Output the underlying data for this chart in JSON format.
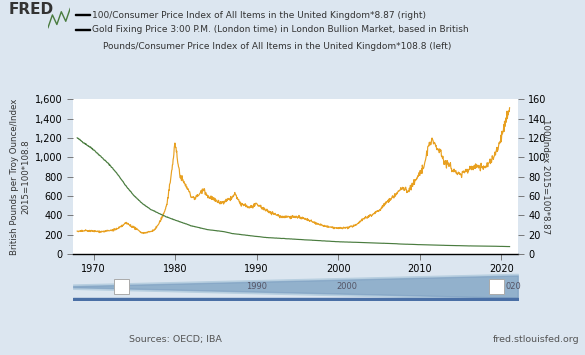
{
  "legend_line1": "100/Consumer Price Index of All Items in the United Kingdom*8.87 (right)",
  "legend_line2_a": "Gold Fixing Price 3:00 P.M. (London time) in London Bullion Market, based in British",
  "legend_line2_b": "Pounds/Consumer Price Index of All Items in the United Kingdom*108.8 (left)",
  "ylabel_left": "British Pounds per Troy Ounce/Index\n2015=100*108.8",
  "ylabel_right": "100/Index 2015=100*8.87",
  "source_left": "Sources: OECD; IBA",
  "source_right": "fred.stlouisfed.org",
  "background_color": "#dce6f0",
  "plot_bg_color": "#ffffff",
  "green_color": "#4a7c3f",
  "orange_color": "#e8a020",
  "ylim_left": [
    0,
    1600
  ],
  "ylim_right": [
    0,
    160
  ],
  "xlim_start": 1967.5,
  "xlim_end": 2022,
  "yticks_left": [
    0,
    200,
    400,
    600,
    800,
    1000,
    1200,
    1400,
    1600
  ],
  "yticks_right": [
    0,
    20,
    40,
    60,
    80,
    100,
    120,
    140,
    160
  ],
  "xticks": [
    1970,
    1980,
    1990,
    2000,
    2010,
    2020
  ],
  "fred_color": "#333333",
  "scroll_bg": "#dce6f0",
  "scroll_fill": "#aabdd4",
  "scroll_dark": "#6e8faf"
}
